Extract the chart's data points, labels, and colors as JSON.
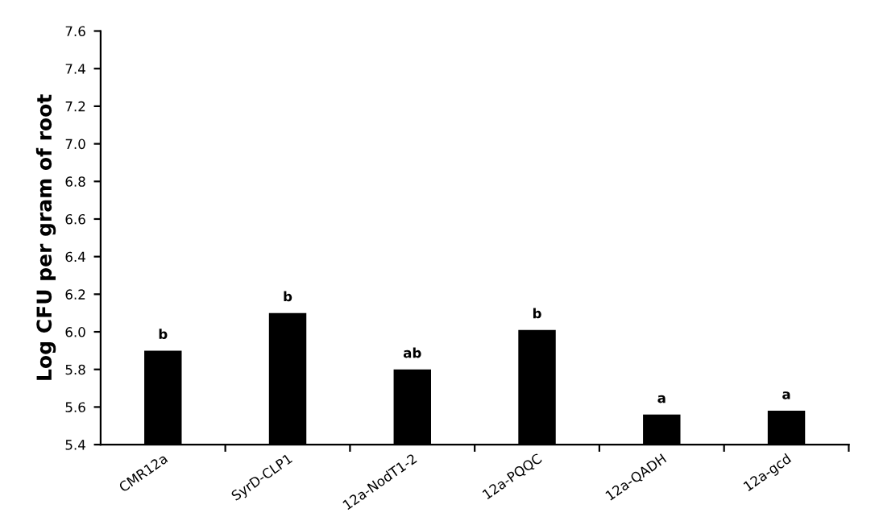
{
  "chart_data": {
    "type": "bar",
    "ylabel": "Log CFU per gram of root",
    "categories": [
      "CMR12a",
      "SyrD-CLP1",
      "12a-NodT1-2",
      "12a-PQQC",
      "12a-QADH",
      "12a-gcd"
    ],
    "values": [
      5.9,
      6.1,
      5.8,
      6.01,
      5.56,
      5.58
    ],
    "value_labels": [
      "b",
      "b",
      "ab",
      "b",
      "a",
      "a"
    ],
    "color": "#000000",
    "ylim": [
      5.4,
      7.6
    ],
    "yticks": [
      {
        "value": 5.4,
        "label": "5.4"
      },
      {
        "value": 5.6,
        "label": "5.6"
      },
      {
        "value": 5.8,
        "label": "5.8"
      },
      {
        "value": 6.0,
        "label": "6.0"
      },
      {
        "value": 6.2,
        "label": "6.2"
      },
      {
        "value": 6.4,
        "label": "6.4"
      },
      {
        "value": 6.6,
        "label": "6.6"
      },
      {
        "value": 6.8,
        "label": "6.8"
      },
      {
        "value": 7.0,
        "label": "7.0"
      },
      {
        "value": 7.2,
        "label": "7.2"
      },
      {
        "value": 7.4,
        "label": "7.4"
      },
      {
        "value": 7.6,
        "label": "7.6"
      }
    ],
    "grid": false,
    "legend": false
  }
}
